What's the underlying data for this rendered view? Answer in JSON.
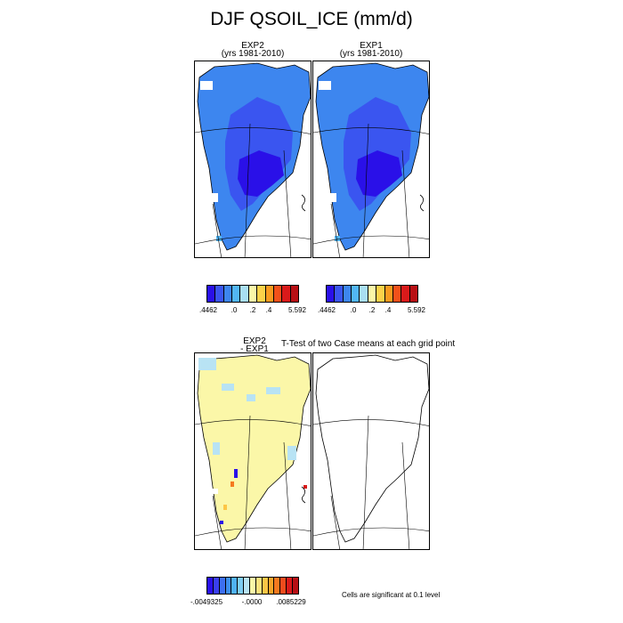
{
  "title": "DJF QSOIL_ICE (mm/d)",
  "panel1": {
    "name": "EXP2",
    "years": "(yrs 1981-2010)"
  },
  "panel2": {
    "name": "EXP1",
    "years": "(yrs 1981-2010)"
  },
  "diff": {
    "line1": "EXP2",
    "line2": "- EXP1"
  },
  "ttest_title": "T-Test of two Case means at each grid point",
  "colorbar1": {
    "labels": [
      ".4462",
      ".0",
      ".2",
      ".4",
      "5.592"
    ]
  },
  "colorbar2": {
    "labels": [
      ".4462",
      ".0",
      ".2",
      ".4",
      "5.592"
    ]
  },
  "colorbar3": {
    "labels": [
      "-.0049325",
      "-.0000",
      ".0085229"
    ]
  },
  "significance_note": "Cells are significant at 0.1 level",
  "colors": {
    "abs_scale": [
      "#2a10e8",
      "#3a55f0",
      "#3d86ef",
      "#52b6f5",
      "#a9dff2",
      "#fbf7a8",
      "#fcd24a",
      "#f99a1f",
      "#f2511a",
      "#d91a1a",
      "#b80f14"
    ],
    "diff_scale": [
      "#2a10e8",
      "#3a3fee",
      "#3d6ff0",
      "#3d8eef",
      "#4fb1f4",
      "#7fcdf3",
      "#b8e3f4",
      "#fbf7a8",
      "#fce27d",
      "#fcc646",
      "#f9a62a",
      "#f5791f",
      "#ef4b1c",
      "#d91a1a",
      "#b80f14"
    ]
  }
}
